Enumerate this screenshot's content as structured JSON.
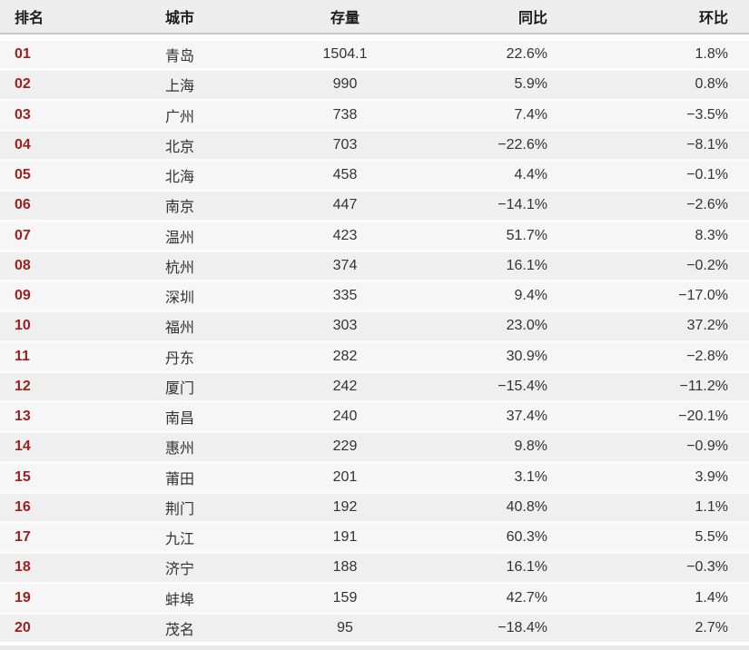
{
  "chart_data": {
    "type": "table",
    "columns": [
      "排名",
      "城市",
      "存量",
      "同比",
      "环比"
    ],
    "rows": [
      [
        "01",
        "青岛",
        "1504.1",
        "22.6%",
        "1.8%"
      ],
      [
        "02",
        "上海",
        "990",
        "5.9%",
        "0.8%"
      ],
      [
        "03",
        "广州",
        "738",
        "7.4%",
        "−3.5%"
      ],
      [
        "04",
        "北京",
        "703",
        "−22.6%",
        "−8.1%"
      ],
      [
        "05",
        "北海",
        "458",
        "4.4%",
        "−0.1%"
      ],
      [
        "06",
        "南京",
        "447",
        "−14.1%",
        "−2.6%"
      ],
      [
        "07",
        "温州",
        "423",
        "51.7%",
        "8.3%"
      ],
      [
        "08",
        "杭州",
        "374",
        "16.1%",
        "−0.2%"
      ],
      [
        "09",
        "深圳",
        "335",
        "9.4%",
        "−17.0%"
      ],
      [
        "10",
        "福州",
        "303",
        "23.0%",
        "37.2%"
      ],
      [
        "11",
        "丹东",
        "282",
        "30.9%",
        "−2.8%"
      ],
      [
        "12",
        "厦门",
        "242",
        "−15.4%",
        "−11.2%"
      ],
      [
        "13",
        "南昌",
        "240",
        "37.4%",
        "−20.1%"
      ],
      [
        "14",
        "惠州",
        "229",
        "9.8%",
        "−0.9%"
      ],
      [
        "15",
        "莆田",
        "201",
        "3.1%",
        "3.9%"
      ],
      [
        "16",
        "荆门",
        "192",
        "40.8%",
        "1.1%"
      ],
      [
        "17",
        "九江",
        "191",
        "60.3%",
        "5.5%"
      ],
      [
        "18",
        "济宁",
        "188",
        "16.1%",
        "−0.3%"
      ],
      [
        "19",
        "蚌埠",
        "159",
        "42.7%",
        "1.4%"
      ],
      [
        "20",
        "茂名",
        "95",
        "−18.4%",
        "2.7%"
      ]
    ],
    "layout": {
      "rank_align": "left",
      "city_align": "left",
      "stock_align": "center",
      "yoy_align": "right",
      "mom_align": "right",
      "zebra_striping": true
    }
  },
  "colors": {
    "rank_text": "#9b2121",
    "header_bg": "#ededed",
    "header_border": "#c8c8c8",
    "row_odd_bg": "#f6f6f6",
    "row_even_bg": "#efefef",
    "row_separator": "#fbfbfb",
    "body_text": "#333333",
    "header_text": "#1a1a1a"
  }
}
